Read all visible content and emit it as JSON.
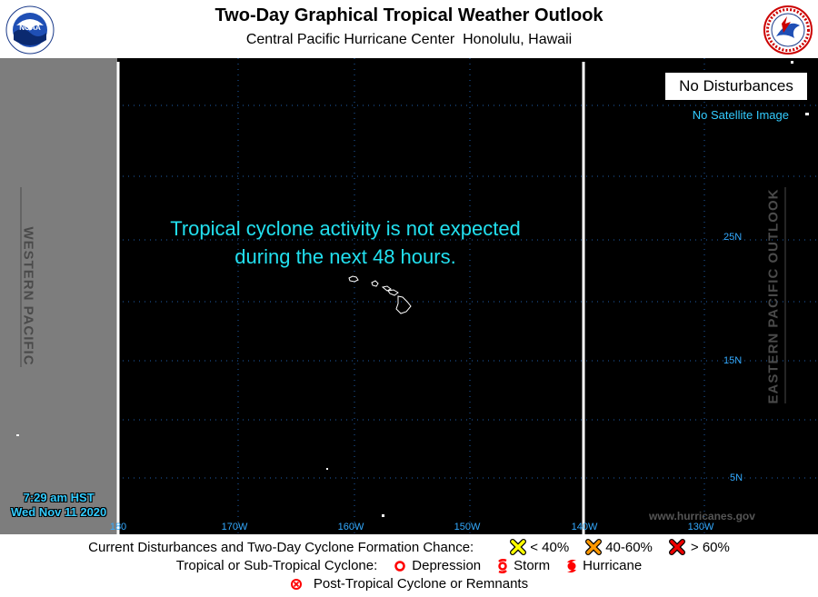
{
  "header": {
    "title": "Two-Day Graphical Tropical Weather Outlook",
    "subtitle": "Central Pacific Hurricane Center  Honolulu, Hawaii",
    "logo_left_icon": "noaa-logo-icon",
    "logo_right_icon": "nws-logo-icon",
    "logo_right_text": "NATIONAL WEATHER SERVICE"
  },
  "map": {
    "west_label": "WESTERN PACIFIC",
    "east_label": "EASTERN PACIFIC OUTLOOK",
    "status_box": "No Disturbances",
    "satellite_note": "No Satellite Image",
    "message_line1": "Tropical cyclone activity is not expected",
    "message_line2": "during the next 48 hours.",
    "latitudes": [
      "25N",
      "15N",
      "5N"
    ],
    "longitudes": [
      "180",
      "170W",
      "160W",
      "150W",
      "140W",
      "130W"
    ],
    "website": "www.hurricanes.gov",
    "time": "7:29 am HST",
    "date": "Wed Nov 11 2020",
    "colors": {
      "background": "#000000",
      "west_band": "#7d7d7d",
      "message": "#22e0ef",
      "grid": "#1f5fae",
      "coast": "#ffffff"
    }
  },
  "legend": {
    "row1_label": "Current Disturbances and Two-Day Cyclone Formation Chance:",
    "low": "< 40%",
    "medium": "40-60%",
    "high": "> 60%",
    "row2_label": "Tropical or Sub-Tropical Cyclone:",
    "depression": "Depression",
    "storm": "Storm",
    "hurricane": "Hurricane",
    "post_tropical": "Post-Tropical Cyclone or Remnants",
    "colors": {
      "low": "#ffff00",
      "medium": "#ff9900",
      "high": "#ee0000",
      "cyclone": "#ff0000"
    }
  }
}
